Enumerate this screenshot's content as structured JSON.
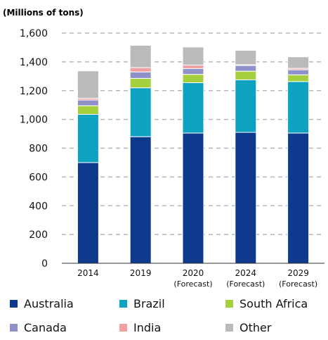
{
  "chart_data": {
    "type": "bar",
    "stacked": true,
    "unit_label": "(Millions of tons)",
    "ylim": [
      0,
      1600
    ],
    "yticks": [
      "0",
      "200",
      "400",
      "600",
      "800",
      "1,000",
      "1,200",
      "1,400",
      "1,600"
    ],
    "ytick_values": [
      0,
      200,
      400,
      600,
      800,
      1000,
      1200,
      1400,
      1600
    ],
    "grid": true,
    "categories": [
      {
        "label": "2014",
        "sub": ""
      },
      {
        "label": "2019",
        "sub": ""
      },
      {
        "label": "2020",
        "sub": "(Forecast)"
      },
      {
        "label": "2024",
        "sub": "(Forecast)"
      },
      {
        "label": "2029",
        "sub": "(Forecast)"
      }
    ],
    "series": [
      {
        "name": "Australia",
        "color": "#0d3a8c",
        "values": [
          700,
          880,
          905,
          910,
          905
        ]
      },
      {
        "name": "Brazil",
        "color": "#0ca2c0",
        "values": [
          335,
          340,
          350,
          365,
          358
        ]
      },
      {
        "name": "South Africa",
        "color": "#a5cf3c",
        "values": [
          60,
          65,
          58,
          60,
          47
        ]
      },
      {
        "name": "Canada",
        "color": "#9090c9",
        "values": [
          40,
          45,
          40,
          40,
          35
        ]
      },
      {
        "name": "India",
        "color": "#f0a0a2",
        "values": [
          12,
          30,
          25,
          5,
          10
        ]
      },
      {
        "name": "Other",
        "color": "#bababa",
        "values": [
          190,
          155,
          125,
          100,
          80
        ]
      }
    ],
    "legend_position": "bottom"
  }
}
